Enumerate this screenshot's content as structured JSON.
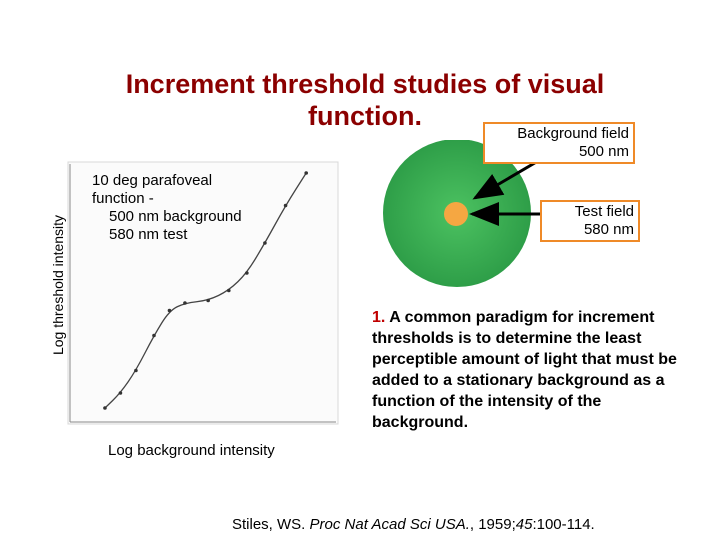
{
  "title": "Increment threshold studies of visual function.",
  "y_axis_label": "Log threshold intensity",
  "x_axis_label": "Log background intensity",
  "plot_caption": [
    "10 deg parafoveal",
    "function -",
    "500 nm background",
    "580 nm test"
  ],
  "diagram": {
    "background_field_label": [
      "Background field",
      "500 nm"
    ],
    "test_field_label": [
      "Test field",
      "580 nm"
    ],
    "colors": {
      "background_field": "#2e9e48",
      "background_field_core": "#4cc261",
      "test_field": "#f5a742",
      "label_border": "#ef8a28"
    }
  },
  "description": {
    "number": "1.",
    "text": "A common paradigm for increment thresholds is to determine the least perceptible amount of light that must be added to a stationary background as a function of the intensity of the background."
  },
  "citation": {
    "author": "Stiles, WS.",
    "journal": "Proc Nat Acad Sci USA.",
    "year": ", 1959;",
    "volume": "45",
    "pages": ":100-114."
  },
  "chart_data": {
    "type": "scatter",
    "x": [
      0.12,
      0.18,
      0.24,
      0.31,
      0.37,
      0.43,
      0.52,
      0.6,
      0.67,
      0.74,
      0.82,
      0.9
    ],
    "y": [
      0.04,
      0.1,
      0.19,
      0.33,
      0.43,
      0.46,
      0.47,
      0.51,
      0.58,
      0.7,
      0.85,
      0.98
    ],
    "xlim": [
      0,
      1
    ],
    "ylim": [
      0,
      1
    ],
    "grid": false
  }
}
